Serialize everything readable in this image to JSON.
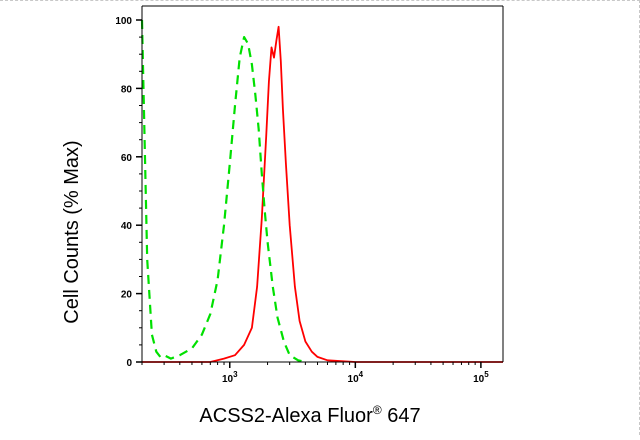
{
  "chart_data": {
    "type": "line",
    "title": "",
    "xlabel": "ACSS2-Alexa Fluor",
    "xlabel_sup": "®",
    "xlabel_tail": " 647",
    "ylabel": "Cell Counts (% Max)",
    "x_scale": "log",
    "xlim": [
      200,
      150000
    ],
    "ylim": [
      0,
      100
    ],
    "grid": false,
    "legend": "none",
    "y_ticks": [
      {
        "value": 0,
        "label": "0"
      },
      {
        "value": 20,
        "label": "20"
      },
      {
        "value": 40,
        "label": "40"
      },
      {
        "value": 60,
        "label": "60"
      },
      {
        "value": 80,
        "label": "80"
      },
      {
        "value": 100,
        "label": "100"
      }
    ],
    "x_ticks": [
      {
        "value": 1000,
        "base": "10",
        "exp": "3"
      },
      {
        "value": 10000,
        "base": "10",
        "exp": "4"
      },
      {
        "value": 100000,
        "base": "10",
        "exp": "5"
      }
    ],
    "series": [
      {
        "color": "#ff0000",
        "style": "solid",
        "x": [
          200,
          700,
          900,
          1100,
          1300,
          1500,
          1650,
          1800,
          1950,
          2050,
          2150,
          2250,
          2350,
          2450,
          2550,
          2650,
          2800,
          3000,
          3300,
          3600,
          4000,
          4500,
          5000,
          6000,
          8000,
          10000,
          100000,
          150000
        ],
        "y": [
          0,
          0,
          1,
          2,
          5,
          10,
          22,
          42,
          66,
          82,
          92,
          89,
          94,
          98,
          88,
          74,
          58,
          40,
          22,
          12,
          6,
          3,
          1.5,
          0.5,
          0.2,
          0,
          0,
          0
        ]
      },
      {
        "color": "#00e000",
        "style": "dashed",
        "x": [
          200,
          220,
          240,
          260,
          280,
          300,
          340,
          400,
          500,
          600,
          700,
          800,
          900,
          1000,
          1100,
          1200,
          1300,
          1400,
          1500,
          1600,
          1700,
          1800,
          1900,
          2000,
          2200,
          2400,
          2700,
          3000,
          3500,
          4000
        ],
        "y": [
          100,
          30,
          8,
          3,
          1.5,
          2,
          1,
          2,
          4,
          8,
          14,
          24,
          40,
          58,
          75,
          89,
          95,
          93,
          87,
          78,
          68,
          55,
          44,
          35,
          22,
          13,
          6,
          2,
          0.5,
          0
        ]
      }
    ]
  }
}
